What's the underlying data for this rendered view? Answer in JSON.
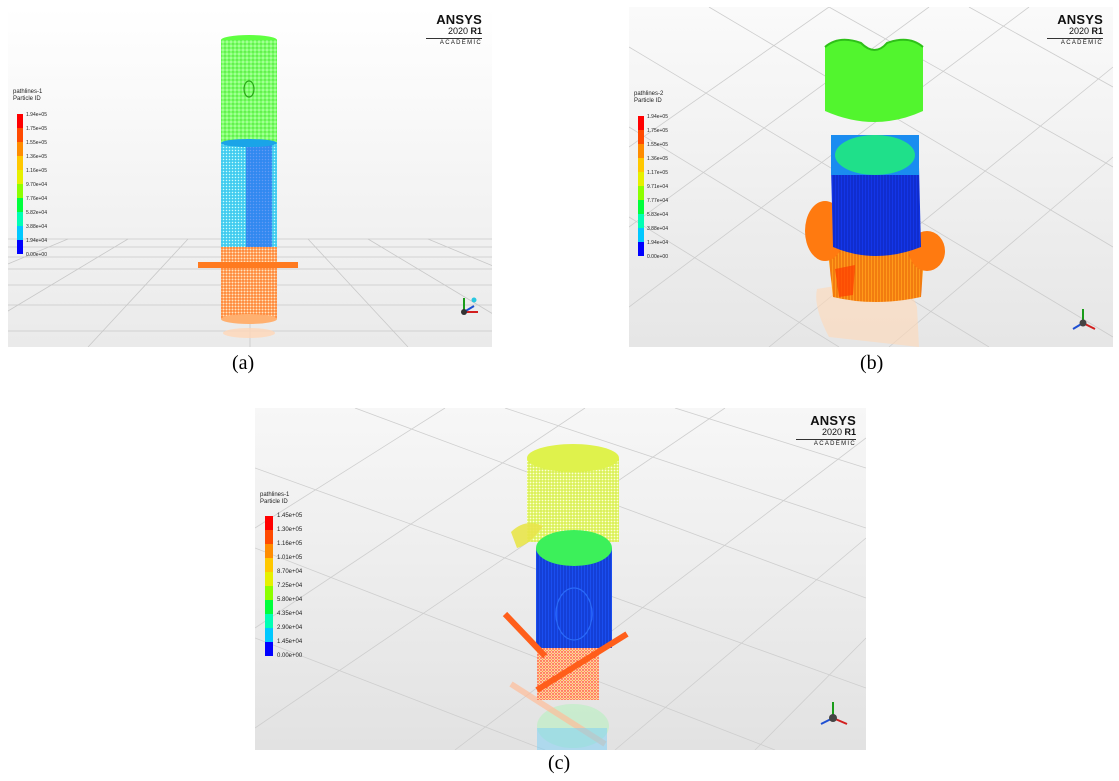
{
  "brand": {
    "name": "ANSYS",
    "version_prefix": "2020",
    "version_release": "R1",
    "edition": "ACADEMIC"
  },
  "panels": [
    {
      "caption": "(a)",
      "legend": {
        "title1": "pathlines-1",
        "title2": "Particle ID",
        "ticks": [
          "1.94e+05",
          "1.75e+05",
          "1.55e+05",
          "1.36e+05",
          "1.16e+05",
          "9.70e+04",
          "7.76e+04",
          "5.82e+04",
          "3.88e+04",
          "1.94e+04",
          "0.00e+00"
        ]
      }
    },
    {
      "caption": "(b)",
      "legend": {
        "title1": "pathlines-2",
        "title2": "Particle ID",
        "ticks": [
          "1.94e+05",
          "1.75e+05",
          "1.55e+05",
          "1.36e+05",
          "1.17e+05",
          "9.71e+04",
          "7.77e+04",
          "5.83e+04",
          "3.88e+04",
          "1.94e+04",
          "0.00e+00"
        ]
      }
    },
    {
      "caption": "(c)",
      "legend": {
        "title1": "pathlines-1",
        "title2": "Particle ID",
        "ticks": [
          "1.45e+05",
          "1.30e+05",
          "1.16e+05",
          "1.01e+05",
          "8.70e+04",
          "7.25e+04",
          "5.80e+04",
          "4.35e+04",
          "2.90e+04",
          "1.45e+04",
          "0.00e+00"
        ]
      }
    }
  ],
  "colormap": [
    "#ff0000",
    "#ff4a00",
    "#ff8c00",
    "#ffc800",
    "#e6f000",
    "#8cff00",
    "#00ff3c",
    "#00ffb4",
    "#00c8ff",
    "#0064ff",
    "#0000ff"
  ]
}
